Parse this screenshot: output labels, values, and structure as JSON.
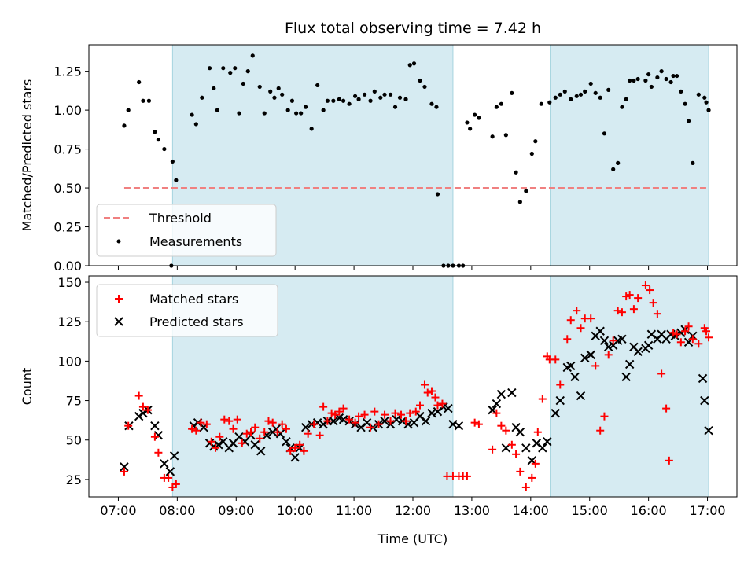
{
  "chart_data": [
    {
      "type": "scatter",
      "title": "Flux total observing time = 7.42 h",
      "ylabel": "Matched/Predicted stars",
      "xlabel": "",
      "xlim": [
        6.5,
        17.5
      ],
      "ylim": [
        0,
        1.42
      ],
      "yticks": [
        "0.00",
        "0.25",
        "0.50",
        "0.75",
        "1.00",
        "1.25"
      ],
      "ytick_values": [
        0,
        0.25,
        0.5,
        0.75,
        1.0,
        1.25
      ],
      "shaded_intervals": [
        [
          7.92,
          12.68
        ],
        [
          14.33,
          17.02
        ]
      ],
      "threshold": {
        "name": "Threshold",
        "y": 0.5,
        "x_range": [
          7.1,
          17.02
        ],
        "color": "#f08080"
      },
      "legend_position": "lower-left",
      "series": [
        {
          "name": "Measurements",
          "marker": "dot",
          "color": "#000000",
          "x": [
            7.1,
            7.17,
            7.35,
            7.42,
            7.52,
            7.62,
            7.68,
            7.78,
            7.9,
            7.92,
            7.98,
            8.25,
            8.32,
            8.42,
            8.55,
            8.62,
            8.68,
            8.78,
            8.9,
            8.98,
            9.05,
            9.12,
            9.2,
            9.28,
            9.4,
            9.48,
            9.58,
            9.65,
            9.72,
            9.78,
            9.88,
            9.95,
            10.02,
            10.1,
            10.18,
            10.28,
            10.38,
            10.48,
            10.55,
            10.65,
            10.75,
            10.82,
            10.92,
            11.02,
            11.08,
            11.18,
            11.28,
            11.35,
            11.45,
            11.52,
            11.62,
            11.7,
            11.78,
            11.88,
            11.95,
            12.02,
            12.12,
            12.2,
            12.32,
            12.4,
            12.42,
            12.52,
            12.6,
            12.68,
            12.78,
            12.85,
            12.92,
            12.97,
            13.05,
            13.12,
            13.35,
            13.42,
            13.5,
            13.58,
            13.68,
            13.75,
            13.82,
            13.92,
            14.02,
            14.08,
            14.18,
            14.32,
            14.42,
            14.5,
            14.58,
            14.68,
            14.78,
            14.85,
            14.92,
            15.02,
            15.1,
            15.18,
            15.25,
            15.32,
            15.4,
            15.48,
            15.55,
            15.62,
            15.68,
            15.75,
            15.82,
            15.95,
            16.0,
            16.05,
            16.15,
            16.22,
            16.3,
            16.38,
            16.42,
            16.48,
            16.55,
            16.62,
            16.68,
            16.75,
            16.85,
            16.95,
            16.98,
            17.02
          ],
          "y": [
            0.9,
            1.0,
            1.18,
            1.06,
            1.06,
            0.86,
            0.81,
            0.75,
            0.0,
            0.67,
            0.55,
            0.97,
            0.91,
            1.08,
            1.27,
            1.14,
            1.0,
            1.27,
            1.24,
            1.27,
            0.98,
            1.17,
            1.25,
            1.35,
            1.15,
            0.98,
            1.12,
            1.08,
            1.14,
            1.1,
            1.0,
            1.06,
            0.98,
            0.98,
            1.02,
            0.88,
            1.16,
            1.0,
            1.06,
            1.06,
            1.07,
            1.06,
            1.04,
            1.09,
            1.07,
            1.1,
            1.06,
            1.12,
            1.08,
            1.1,
            1.1,
            1.02,
            1.08,
            1.07,
            1.29,
            1.3,
            1.19,
            1.15,
            1.04,
            1.02,
            0.46,
            0.0,
            0.0,
            0.0,
            0.0,
            0.0,
            0.92,
            0.88,
            0.97,
            0.95,
            0.83,
            1.02,
            1.04,
            0.84,
            1.11,
            0.6,
            0.41,
            0.48,
            0.72,
            0.8,
            1.04,
            1.05,
            1.08,
            1.1,
            1.12,
            1.07,
            1.09,
            1.1,
            1.12,
            1.17,
            1.11,
            1.08,
            0.85,
            1.13,
            0.62,
            0.66,
            1.02,
            1.07,
            1.19,
            1.19,
            1.2,
            1.19,
            1.23,
            1.15,
            1.21,
            1.25,
            1.2,
            1.18,
            1.22,
            1.22,
            1.12,
            1.04,
            0.93,
            0.66,
            1.1,
            1.08,
            1.05,
            1.0
          ]
        }
      ]
    },
    {
      "type": "scatter",
      "title": "",
      "ylabel": "Count",
      "xlabel": "Time (UTC)",
      "xlim": [
        6.5,
        17.5
      ],
      "ylim": [
        14,
        154
      ],
      "xticks": [
        "07:00",
        "08:00",
        "09:00",
        "10:00",
        "11:00",
        "12:00",
        "13:00",
        "14:00",
        "15:00",
        "16:00",
        "17:00"
      ],
      "xtick_values": [
        7,
        8,
        9,
        10,
        11,
        12,
        13,
        14,
        15,
        16,
        17
      ],
      "yticks": [
        "25",
        "50",
        "75",
        "100",
        "125",
        "150"
      ],
      "ytick_values": [
        25,
        50,
        75,
        100,
        125,
        150
      ],
      "shaded_intervals": [
        [
          7.92,
          12.68
        ],
        [
          14.33,
          17.02
        ]
      ],
      "legend_position": "upper-left",
      "series": [
        {
          "name": "Matched stars",
          "marker": "plus",
          "color": "#ff0000",
          "x": [
            7.1,
            7.17,
            7.35,
            7.42,
            7.5,
            7.62,
            7.68,
            7.78,
            7.85,
            7.92,
            7.98,
            8.25,
            8.32,
            8.4,
            8.5,
            8.58,
            8.65,
            8.72,
            8.8,
            8.88,
            8.95,
            9.02,
            9.1,
            9.18,
            9.25,
            9.32,
            9.4,
            9.48,
            9.55,
            9.62,
            9.7,
            9.78,
            9.85,
            9.92,
            10.0,
            10.08,
            10.15,
            10.22,
            10.32,
            10.42,
            10.48,
            10.55,
            10.62,
            10.68,
            10.75,
            10.82,
            10.92,
            11.02,
            11.08,
            11.18,
            11.28,
            11.35,
            11.42,
            11.52,
            11.62,
            11.7,
            11.8,
            11.88,
            11.95,
            12.05,
            12.12,
            12.2,
            12.25,
            12.32,
            12.38,
            12.42,
            12.5,
            12.58,
            12.68,
            12.78,
            12.85,
            12.92,
            13.05,
            13.12,
            13.35,
            13.42,
            13.5,
            13.58,
            13.68,
            13.75,
            13.82,
            13.92,
            14.02,
            14.08,
            14.12,
            14.2,
            14.28,
            14.32,
            14.42,
            14.5,
            14.62,
            14.68,
            14.78,
            14.85,
            14.92,
            15.02,
            15.1,
            15.18,
            15.25,
            15.32,
            15.4,
            15.48,
            15.55,
            15.62,
            15.68,
            15.75,
            15.82,
            15.95,
            16.02,
            16.08,
            16.15,
            16.22,
            16.3,
            16.35,
            16.42,
            16.48,
            16.55,
            16.62,
            16.68,
            16.75,
            16.85,
            16.95,
            16.98,
            17.02
          ],
          "y": [
            30,
            59,
            78,
            71,
            69,
            52,
            42,
            26,
            26,
            20,
            22,
            57,
            56,
            61,
            60,
            49,
            45,
            52,
            63,
            62,
            57,
            63,
            48,
            54,
            55,
            58,
            51,
            55,
            62,
            61,
            55,
            60,
            57,
            43,
            45,
            47,
            43,
            54,
            60,
            53,
            71,
            62,
            67,
            66,
            68,
            70,
            63,
            61,
            65,
            66,
            58,
            68,
            60,
            66,
            62,
            67,
            66,
            62,
            67,
            68,
            72,
            85,
            80,
            81,
            77,
            72,
            73,
            27,
            27,
            27,
            27,
            27,
            61,
            60,
            44,
            67,
            59,
            56,
            47,
            41,
            30,
            20,
            26,
            35,
            55,
            76,
            103,
            101,
            101,
            85,
            114,
            126,
            132,
            121,
            127,
            127,
            97,
            56,
            65,
            104,
            113,
            132,
            131,
            141,
            142,
            133,
            140,
            148,
            145,
            137,
            130,
            92,
            70,
            37,
            118,
            117,
            112,
            119,
            122,
            114,
            111,
            121,
            119,
            115
          ]
        },
        {
          "name": "Predicted stars",
          "marker": "x",
          "color": "#000000",
          "x": [
            7.1,
            7.18,
            7.35,
            7.42,
            7.5,
            7.62,
            7.68,
            7.78,
            7.88,
            7.95,
            8.28,
            8.35,
            8.45,
            8.55,
            8.62,
            8.7,
            8.78,
            8.88,
            8.95,
            9.05,
            9.15,
            9.25,
            9.32,
            9.42,
            9.52,
            9.62,
            9.68,
            9.75,
            9.85,
            9.92,
            10.0,
            10.08,
            10.18,
            10.28,
            10.38,
            10.48,
            10.55,
            10.65,
            10.75,
            10.82,
            10.92,
            11.02,
            11.12,
            11.22,
            11.32,
            11.42,
            11.52,
            11.62,
            11.72,
            11.82,
            11.92,
            12.02,
            12.12,
            12.22,
            12.32,
            12.42,
            12.52,
            12.6,
            12.68,
            12.78,
            13.35,
            13.42,
            13.5,
            13.58,
            13.68,
            13.75,
            13.82,
            13.92,
            14.02,
            14.1,
            14.2,
            14.28,
            14.42,
            14.5,
            14.62,
            14.68,
            14.75,
            14.85,
            14.92,
            15.02,
            15.1,
            15.18,
            15.25,
            15.32,
            15.4,
            15.48,
            15.55,
            15.62,
            15.68,
            15.75,
            15.82,
            15.95,
            16.0,
            16.05,
            16.15,
            16.22,
            16.3,
            16.38,
            16.45,
            16.55,
            16.62,
            16.68,
            16.75,
            16.92,
            16.95,
            17.02
          ],
          "y": [
            33,
            59,
            65,
            67,
            69,
            59,
            53,
            35,
            30,
            40,
            59,
            61,
            58,
            48,
            46,
            47,
            49,
            45,
            48,
            52,
            49,
            53,
            47,
            43,
            53,
            55,
            57,
            54,
            49,
            45,
            39,
            45,
            58,
            60,
            61,
            60,
            62,
            62,
            64,
            63,
            62,
            60,
            58,
            61,
            58,
            60,
            62,
            60,
            63,
            62,
            60,
            61,
            65,
            62,
            67,
            68,
            71,
            70,
            60,
            59,
            69,
            73,
            79,
            45,
            80,
            58,
            55,
            45,
            37,
            48,
            45,
            49,
            67,
            75,
            96,
            97,
            90,
            78,
            102,
            104,
            116,
            119,
            113,
            109,
            110,
            113,
            114,
            90,
            98,
            109,
            106,
            108,
            110,
            117,
            114,
            117,
            114,
            117,
            116,
            118,
            120,
            112,
            116,
            89,
            75,
            56
          ]
        }
      ]
    }
  ]
}
